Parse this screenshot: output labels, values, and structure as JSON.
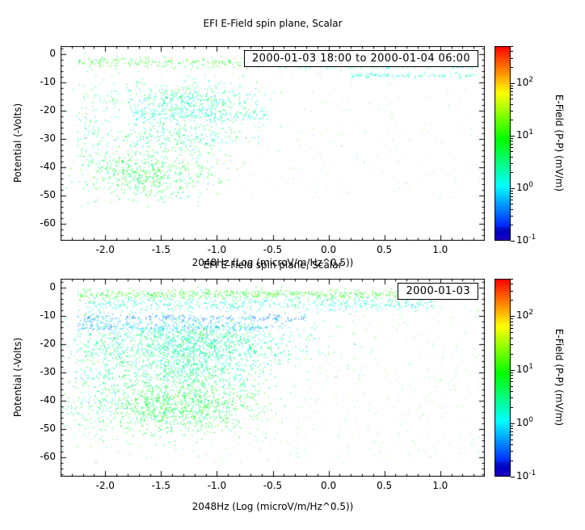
{
  "chart_data": [
    {
      "type": "scatter",
      "title": "EFI  E-Field spin plane, Scalar",
      "xlabel": "2048Hz (Log (microV/m/Hz^0.5))",
      "ylabel": "Potential (-Volts)",
      "legend": "2000-01-03 18:00 to 2000-01-04 06:00",
      "xlim": [
        -2.4,
        1.4
      ],
      "ylim": [
        -66,
        3
      ],
      "xticks": [
        -2.0,
        -1.5,
        -1.0,
        -0.5,
        0.0,
        0.5,
        1.0
      ],
      "xtick_labels": [
        "-2.0",
        "-1.5",
        "-1.0",
        "-0.5",
        "0.0",
        "0.5",
        "1.0"
      ],
      "yticks": [
        0,
        -10,
        -20,
        -30,
        -40,
        -50,
        -60
      ],
      "ytick_labels": [
        "0",
        "-10",
        "-20",
        "-30",
        "-40",
        "-50",
        "-60"
      ],
      "colorbar": {
        "label": "E-Field (P-P) (mV/m)",
        "ticks": [
          "10^-1",
          "10^0",
          "10^1",
          "10^2"
        ],
        "tick_values": [
          -1,
          0,
          1,
          2
        ],
        "log_range": [
          -1,
          2.7
        ]
      },
      "clusters": [
        {
          "x0": -2.25,
          "x1": 0.45,
          "y": -2.6,
          "sy": 0.9,
          "n": 380,
          "v": 0.9,
          "sv": 0.28
        },
        {
          "x0": -0.45,
          "x1": 1.35,
          "y": -3.9,
          "sy": 0.35,
          "n": 260,
          "v": 0.15,
          "sv": 0.12
        },
        {
          "x0": 0.2,
          "x1": 1.35,
          "y": -7.3,
          "sy": 0.5,
          "n": 110,
          "v": 0.2,
          "sv": 0.15
        },
        {
          "x": -1.25,
          "sx": 0.35,
          "y": -16,
          "sy": 3.5,
          "n": 480,
          "v": 0.35,
          "sv": 0.3
        },
        {
          "x0": -1.75,
          "x1": -0.55,
          "y": -21.5,
          "sy": 1.3,
          "n": 220,
          "v": 0.2,
          "sv": 0.2
        },
        {
          "x": -1.35,
          "sx": 0.3,
          "y": -29,
          "sy": 2.6,
          "n": 260,
          "v": 0.4,
          "sv": 0.3
        },
        {
          "x": -1.6,
          "sx": 0.3,
          "y": -42,
          "sy": 4.5,
          "n": 600,
          "v": 0.7,
          "sv": 0.35
        },
        {
          "x": -2.1,
          "sx": 0.1,
          "y": -30,
          "sy": 11,
          "n": 120,
          "v": 0.35,
          "sv": 0.3
        },
        {
          "x0": -2.3,
          "x1": 1.35,
          "y0": -52,
          "y1": -1,
          "n": 420,
          "v": 0.9,
          "sv": 0.55,
          "alpha": 0.45
        }
      ]
    },
    {
      "type": "scatter",
      "title": "EFI  E-Field spin plane, Scalar",
      "xlabel": "2048Hz (Log (microV/m/Hz^0.5))",
      "ylabel": "Potential (-Volts)",
      "legend": "2000-01-03",
      "xlim": [
        -2.4,
        1.4
      ],
      "ylim": [
        -67,
        3
      ],
      "xticks": [
        -2.0,
        -1.5,
        -1.0,
        -0.5,
        0.0,
        0.5,
        1.0
      ],
      "xtick_labels": [
        "-2.0",
        "-1.5",
        "-1.0",
        "-0.5",
        "0.0",
        "0.5",
        "1.0"
      ],
      "yticks": [
        0,
        -10,
        -20,
        -30,
        -40,
        -50,
        -60
      ],
      "ytick_labels": [
        "0",
        "-10",
        "-20",
        "-30",
        "-40",
        "-50",
        "-60"
      ],
      "colorbar": {
        "label": "E-Field (P-P) (mV/m)",
        "ticks": [
          "10^-1",
          "10^0",
          "10^1",
          "10^2"
        ],
        "tick_values": [
          -1,
          0,
          1,
          2
        ],
        "log_range": [
          -1,
          2.7
        ]
      },
      "clusters": [
        {
          "x0": -2.25,
          "x1": 1.15,
          "y": -2.3,
          "sy": 0.9,
          "n": 650,
          "v": 0.95,
          "sv": 0.3
        },
        {
          "x0": -2.15,
          "x1": 0.95,
          "y": -5.8,
          "sy": 1.3,
          "n": 500,
          "v": 0.2,
          "sv": 0.18
        },
        {
          "x0": -2.25,
          "x1": -0.2,
          "y": -10.8,
          "sy": 0.6,
          "n": 220,
          "v": -0.35,
          "sv": 0.15
        },
        {
          "x0": -2.25,
          "x1": -0.4,
          "y": -14.0,
          "sy": 0.9,
          "n": 260,
          "v": -0.25,
          "sv": 0.2
        },
        {
          "x": -1.2,
          "sx": 0.45,
          "y": -20,
          "sy": 4.5,
          "n": 1400,
          "v": 0.35,
          "sv": 0.28
        },
        {
          "x": -1.3,
          "sx": 0.35,
          "y": -30,
          "sy": 3.2,
          "n": 520,
          "v": 0.45,
          "sv": 0.3
        },
        {
          "x": -1.35,
          "sx": 0.38,
          "y": -42,
          "sy": 4.8,
          "n": 1150,
          "v": 0.72,
          "sv": 0.3
        },
        {
          "x": -2.05,
          "sx": 0.12,
          "y": -28,
          "sy": 13,
          "n": 260,
          "v": 0.3,
          "sv": 0.28
        },
        {
          "x0": -2.3,
          "x1": 1.35,
          "y0": -62,
          "y1": -1,
          "n": 850,
          "v": 0.8,
          "sv": 0.55,
          "alpha": 0.45
        }
      ]
    }
  ]
}
